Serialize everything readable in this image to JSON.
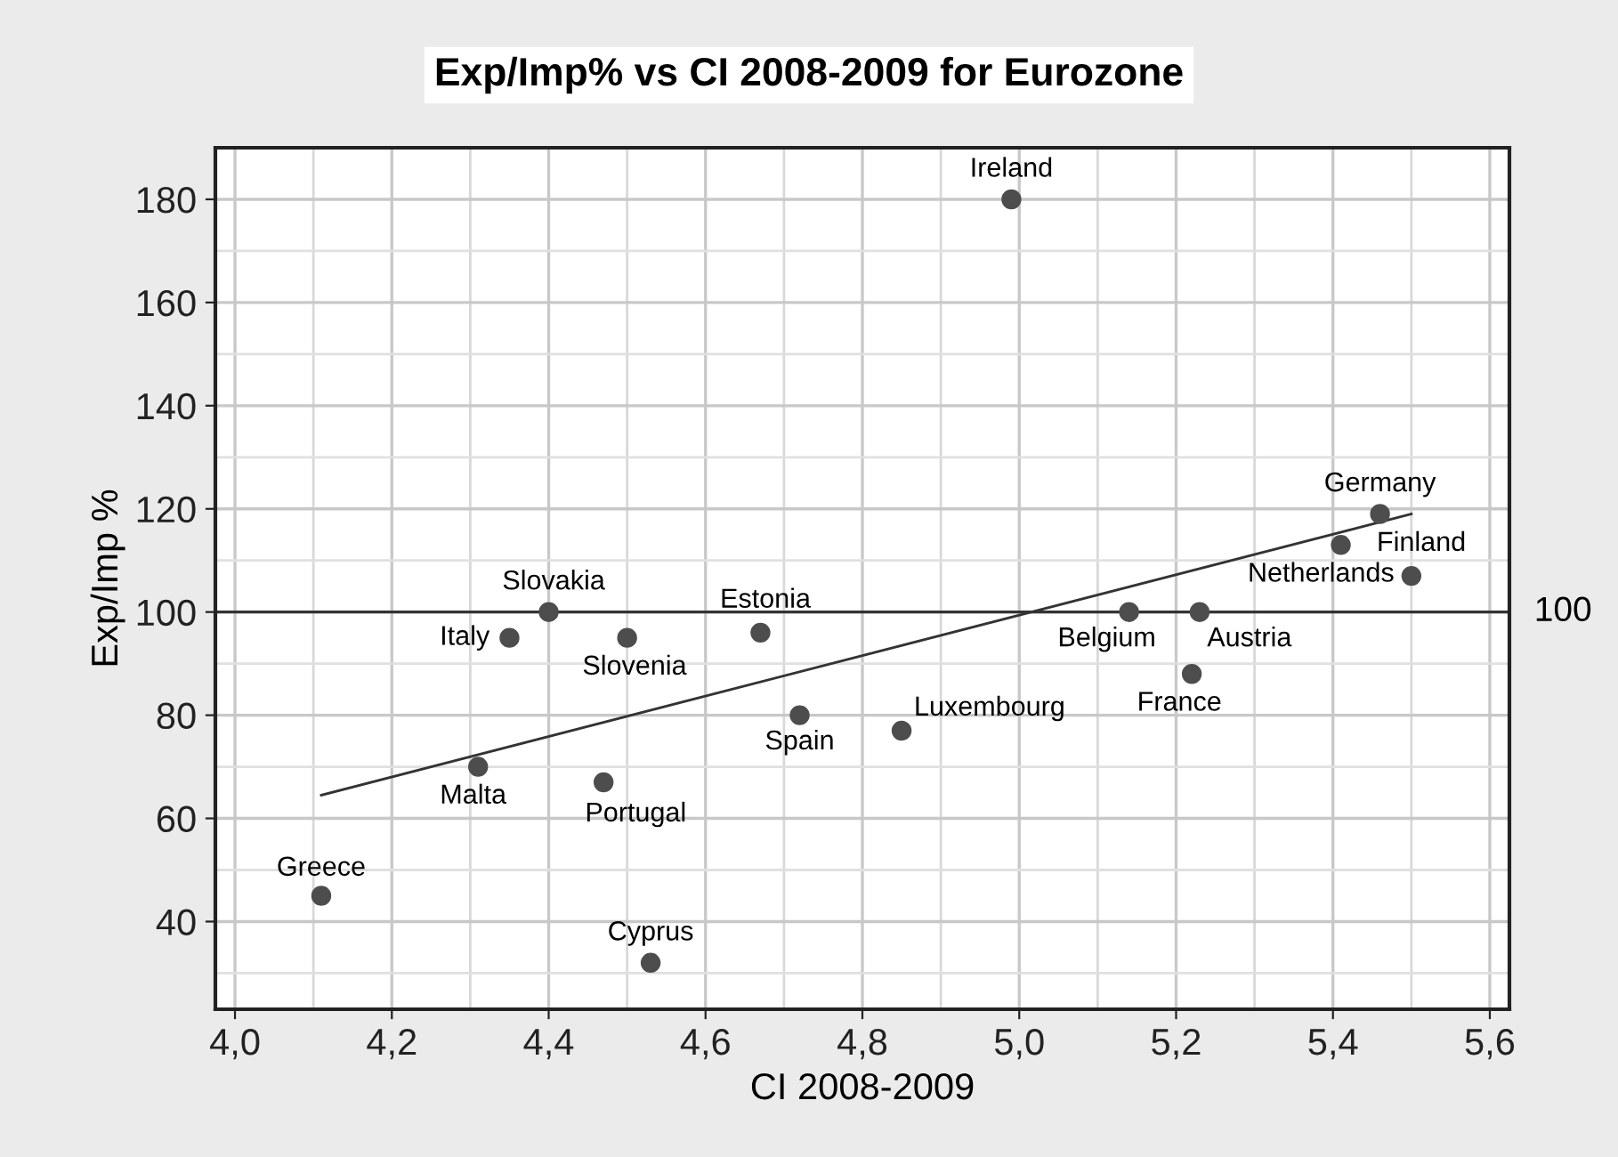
{
  "chart_data": {
    "type": "scatter",
    "title": "Exp/Imp% vs CI 2008-2009 for Eurozone",
    "xlabel": "CI 2008-2009",
    "ylabel": "Exp/Imp %",
    "series": [
      {
        "color": "#4d4d4d",
        "marker": "circle",
        "x": [
          4.11,
          4.31,
          4.35,
          4.4,
          4.5,
          4.47,
          4.53,
          4.67,
          4.72,
          4.85,
          4.99,
          5.14,
          5.23,
          5.22,
          5.46,
          5.41,
          5.5
        ],
        "values": [
          45,
          70,
          95,
          100,
          95,
          67,
          32,
          96,
          80,
          77,
          180,
          100,
          100,
          88,
          119,
          113,
          107
        ]
      },
      {
        "type": "line",
        "color": "#333333",
        "line_style": "solid",
        "x": [
          4.11,
          5.5
        ],
        "values": [
          64.5,
          119
        ]
      }
    ],
    "annotations": [
      {
        "text": "Greece",
        "x": 4.11,
        "y": 45
      },
      {
        "text": "Malta",
        "x": 4.31,
        "y": 70
      },
      {
        "text": "Italy",
        "x": 4.35,
        "y": 95
      },
      {
        "text": "Slovakia",
        "x": 4.4,
        "y": 100
      },
      {
        "text": "Slovenia",
        "x": 4.5,
        "y": 95
      },
      {
        "text": "Portugal",
        "x": 4.47,
        "y": 67
      },
      {
        "text": "Cyprus",
        "x": 4.53,
        "y": 32
      },
      {
        "text": "Estonia",
        "x": 4.67,
        "y": 96
      },
      {
        "text": "Spain",
        "x": 4.72,
        "y": 80
      },
      {
        "text": "Luxembourg",
        "x": 4.85,
        "y": 77
      },
      {
        "text": "Ireland",
        "x": 4.99,
        "y": 180
      },
      {
        "text": "Belgium",
        "x": 5.14,
        "y": 100
      },
      {
        "text": "Austria",
        "x": 5.23,
        "y": 100
      },
      {
        "text": "France",
        "x": 5.22,
        "y": 88
      },
      {
        "text": "Germany",
        "x": 5.46,
        "y": 119
      },
      {
        "text": "Netherlands",
        "x": 5.41,
        "y": 113
      },
      {
        "text": "Finland",
        "x": 5.5,
        "y": 107
      }
    ],
    "ref_lines": [
      {
        "axis": "y",
        "value": 100,
        "label": "100",
        "color": "#333333",
        "line_style": "solid"
      }
    ],
    "xlim": [
      3.975,
      5.625
    ],
    "ylim": [
      23,
      190
    ],
    "xticks": [
      {
        "value": 4.0,
        "label": "4,0"
      },
      {
        "value": 4.2,
        "label": "4,2"
      },
      {
        "value": 4.4,
        "label": "4,4"
      },
      {
        "value": 4.6,
        "label": "4,6"
      },
      {
        "value": 4.8,
        "label": "4,8"
      },
      {
        "value": 5.0,
        "label": "5,0"
      },
      {
        "value": 5.2,
        "label": "5,2"
      },
      {
        "value": 5.4,
        "label": "5,4"
      },
      {
        "value": 5.6,
        "label": "5,6"
      }
    ],
    "yticks": [
      40,
      60,
      80,
      100,
      120,
      140,
      160,
      180
    ],
    "grid": true,
    "legend": false
  }
}
